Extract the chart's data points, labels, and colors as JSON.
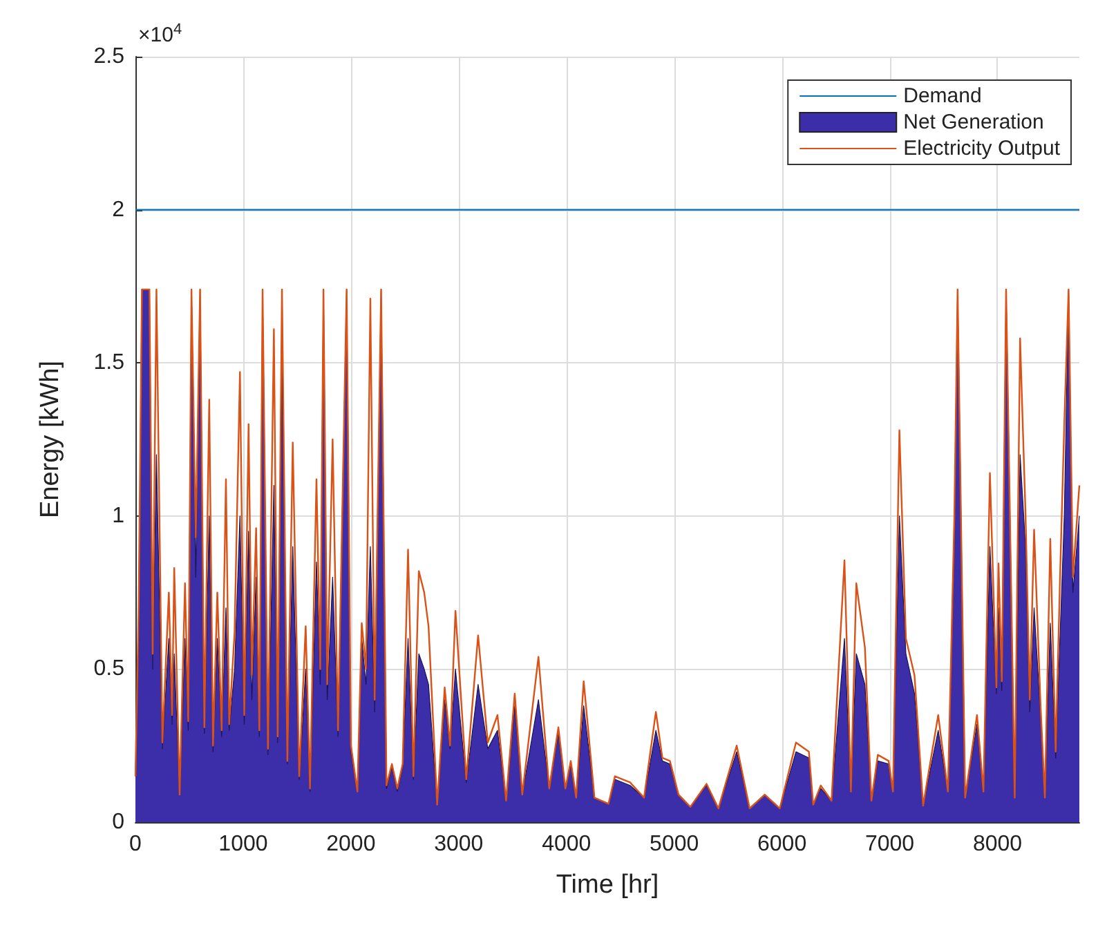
{
  "chart_data": {
    "type": "line",
    "xlabel": "Time [hr]",
    "ylabel": "Energy [kWh]",
    "annotations": [
      "×10$^{4}$"
    ],
    "xlim": [
      0,
      8760
    ],
    "xticks": [
      0,
      1000,
      2000,
      3000,
      4000,
      5000,
      6000,
      7000,
      8000
    ],
    "ylim": [
      0,
      2.5
    ],
    "yticks": [
      0,
      0.5,
      1,
      1.5,
      2,
      2.5
    ],
    "grid": true,
    "legend": "top right",
    "x": [
      0,
      30,
      60,
      130,
      160,
      195,
      250,
      310,
      340,
      360,
      410,
      460,
      490,
      520,
      560,
      600,
      640,
      685,
      720,
      760,
      800,
      840,
      870,
      920,
      970,
      1010,
      1050,
      1080,
      1120,
      1150,
      1180,
      1230,
      1285,
      1320,
      1360,
      1410,
      1460,
      1520,
      1580,
      1620,
      1680,
      1715,
      1745,
      1780,
      1830,
      1880,
      1960,
      2000,
      2060,
      2100,
      2140,
      2180,
      2220,
      2280,
      2330,
      2380,
      2430,
      2480,
      2530,
      2580,
      2630,
      2680,
      2720,
      2800,
      2870,
      2920,
      2970,
      3070,
      3180,
      3270,
      3360,
      3440,
      3520,
      3590,
      3740,
      3840,
      3925,
      3990,
      4040,
      4090,
      4160,
      4260,
      4390,
      4450,
      4590,
      4720,
      4830,
      4890,
      4960,
      5040,
      5150,
      5300,
      5410,
      5580,
      5700,
      5840,
      5980,
      6130,
      6250,
      6290,
      6360,
      6460,
      6580,
      6640,
      6690,
      6770,
      6830,
      6890,
      6990,
      7030,
      7090,
      7150,
      7230,
      7310,
      7450,
      7540,
      7600,
      7630,
      7700,
      7810,
      7870,
      7930,
      7990,
      8010,
      8040,
      8080,
      8160,
      8210,
      8260,
      8300,
      8340,
      8400,
      8440,
      8490,
      8540,
      8580,
      8620,
      8660,
      8700,
      8760
    ],
    "series": [
      {
        "name": "Demand",
        "type": "line",
        "color": "#0072bd",
        "x": [
          0,
          8760
        ],
        "values": [
          2,
          2
        ]
      },
      {
        "name": "Net Generation",
        "type": "area",
        "color": "#3b2ea8",
        "values": [
          0.15,
          0.65,
          1.74,
          1.74,
          0.5,
          1.2,
          0.24,
          0.6,
          0.32,
          0.55,
          0.09,
          0.6,
          0.3,
          1.74,
          0.8,
          1.74,
          0.29,
          1.0,
          0.23,
          0.6,
          0.28,
          0.7,
          0.3,
          0.5,
          1.0,
          0.32,
          0.95,
          0.4,
          0.8,
          0.28,
          1.74,
          0.22,
          1.1,
          0.26,
          1.5,
          0.19,
          0.9,
          0.14,
          0.5,
          0.1,
          0.85,
          0.45,
          1.74,
          0.4,
          0.8,
          0.28,
          1.74,
          0.23,
          0.1,
          0.6,
          0.45,
          0.9,
          0.36,
          1.74,
          0.11,
          0.18,
          0.1,
          0.18,
          0.6,
          0.14,
          0.55,
          0.5,
          0.45,
          0.057,
          0.4,
          0.24,
          0.5,
          0.13,
          0.45,
          0.24,
          0.3,
          0.07,
          0.38,
          0.09,
          0.4,
          0.11,
          0.29,
          0.11,
          0.19,
          0.08,
          0.38,
          0.08,
          0.06,
          0.14,
          0.12,
          0.08,
          0.3,
          0.2,
          0.19,
          0.09,
          0.05,
          0.12,
          0.045,
          0.23,
          0.045,
          0.09,
          0.045,
          0.23,
          0.21,
          0.057,
          0.11,
          0.07,
          0.6,
          0.1,
          0.55,
          0.45,
          0.07,
          0.2,
          0.19,
          0.1,
          1.0,
          0.55,
          0.42,
          0.054,
          0.3,
          0.1,
          0.95,
          1.74,
          0.08,
          0.32,
          0.1,
          0.9,
          0.42,
          0.7,
          0.43,
          1.74,
          0.08,
          1.2,
          0.9,
          0.36,
          0.7,
          0.35,
          0.08,
          0.65,
          0.21,
          0.6,
          1.0,
          1.74,
          0.75,
          1.0
        ]
      },
      {
        "name": "Electricity Output",
        "type": "line",
        "color": "#d95319",
        "values": [
          0.15,
          0.7,
          1.74,
          1.74,
          0.55,
          1.74,
          0.26,
          0.75,
          0.35,
          0.83,
          0.09,
          0.78,
          0.33,
          1.74,
          0.93,
          1.74,
          0.31,
          1.38,
          0.25,
          0.75,
          0.3,
          1.12,
          0.32,
          0.62,
          1.47,
          0.35,
          1.3,
          0.48,
          0.96,
          0.3,
          1.74,
          0.24,
          1.61,
          0.28,
          1.74,
          0.2,
          1.24,
          0.15,
          0.64,
          0.11,
          1.12,
          0.5,
          1.74,
          0.45,
          1.25,
          0.3,
          1.74,
          0.25,
          0.1,
          0.65,
          0.5,
          1.71,
          0.4,
          1.74,
          0.12,
          0.19,
          0.11,
          0.19,
          0.89,
          0.15,
          0.82,
          0.75,
          0.64,
          0.057,
          0.44,
          0.25,
          0.69,
          0.14,
          0.61,
          0.26,
          0.35,
          0.07,
          0.42,
          0.09,
          0.54,
          0.11,
          0.31,
          0.11,
          0.2,
          0.08,
          0.46,
          0.08,
          0.06,
          0.15,
          0.13,
          0.08,
          0.36,
          0.21,
          0.2,
          0.09,
          0.05,
          0.125,
          0.045,
          0.25,
          0.045,
          0.09,
          0.045,
          0.26,
          0.23,
          0.057,
          0.12,
          0.07,
          0.855,
          0.1,
          0.78,
          0.57,
          0.07,
          0.22,
          0.2,
          0.1,
          1.28,
          0.6,
          0.48,
          0.054,
          0.35,
          0.1,
          1.0,
          1.74,
          0.08,
          0.35,
          0.1,
          1.14,
          0.44,
          0.845,
          0.46,
          1.74,
          0.08,
          1.58,
          1.01,
          0.4,
          0.955,
          0.38,
          0.08,
          0.925,
          0.23,
          0.79,
          1.3,
          1.74,
          0.8,
          1.1
        ]
      }
    ]
  }
}
